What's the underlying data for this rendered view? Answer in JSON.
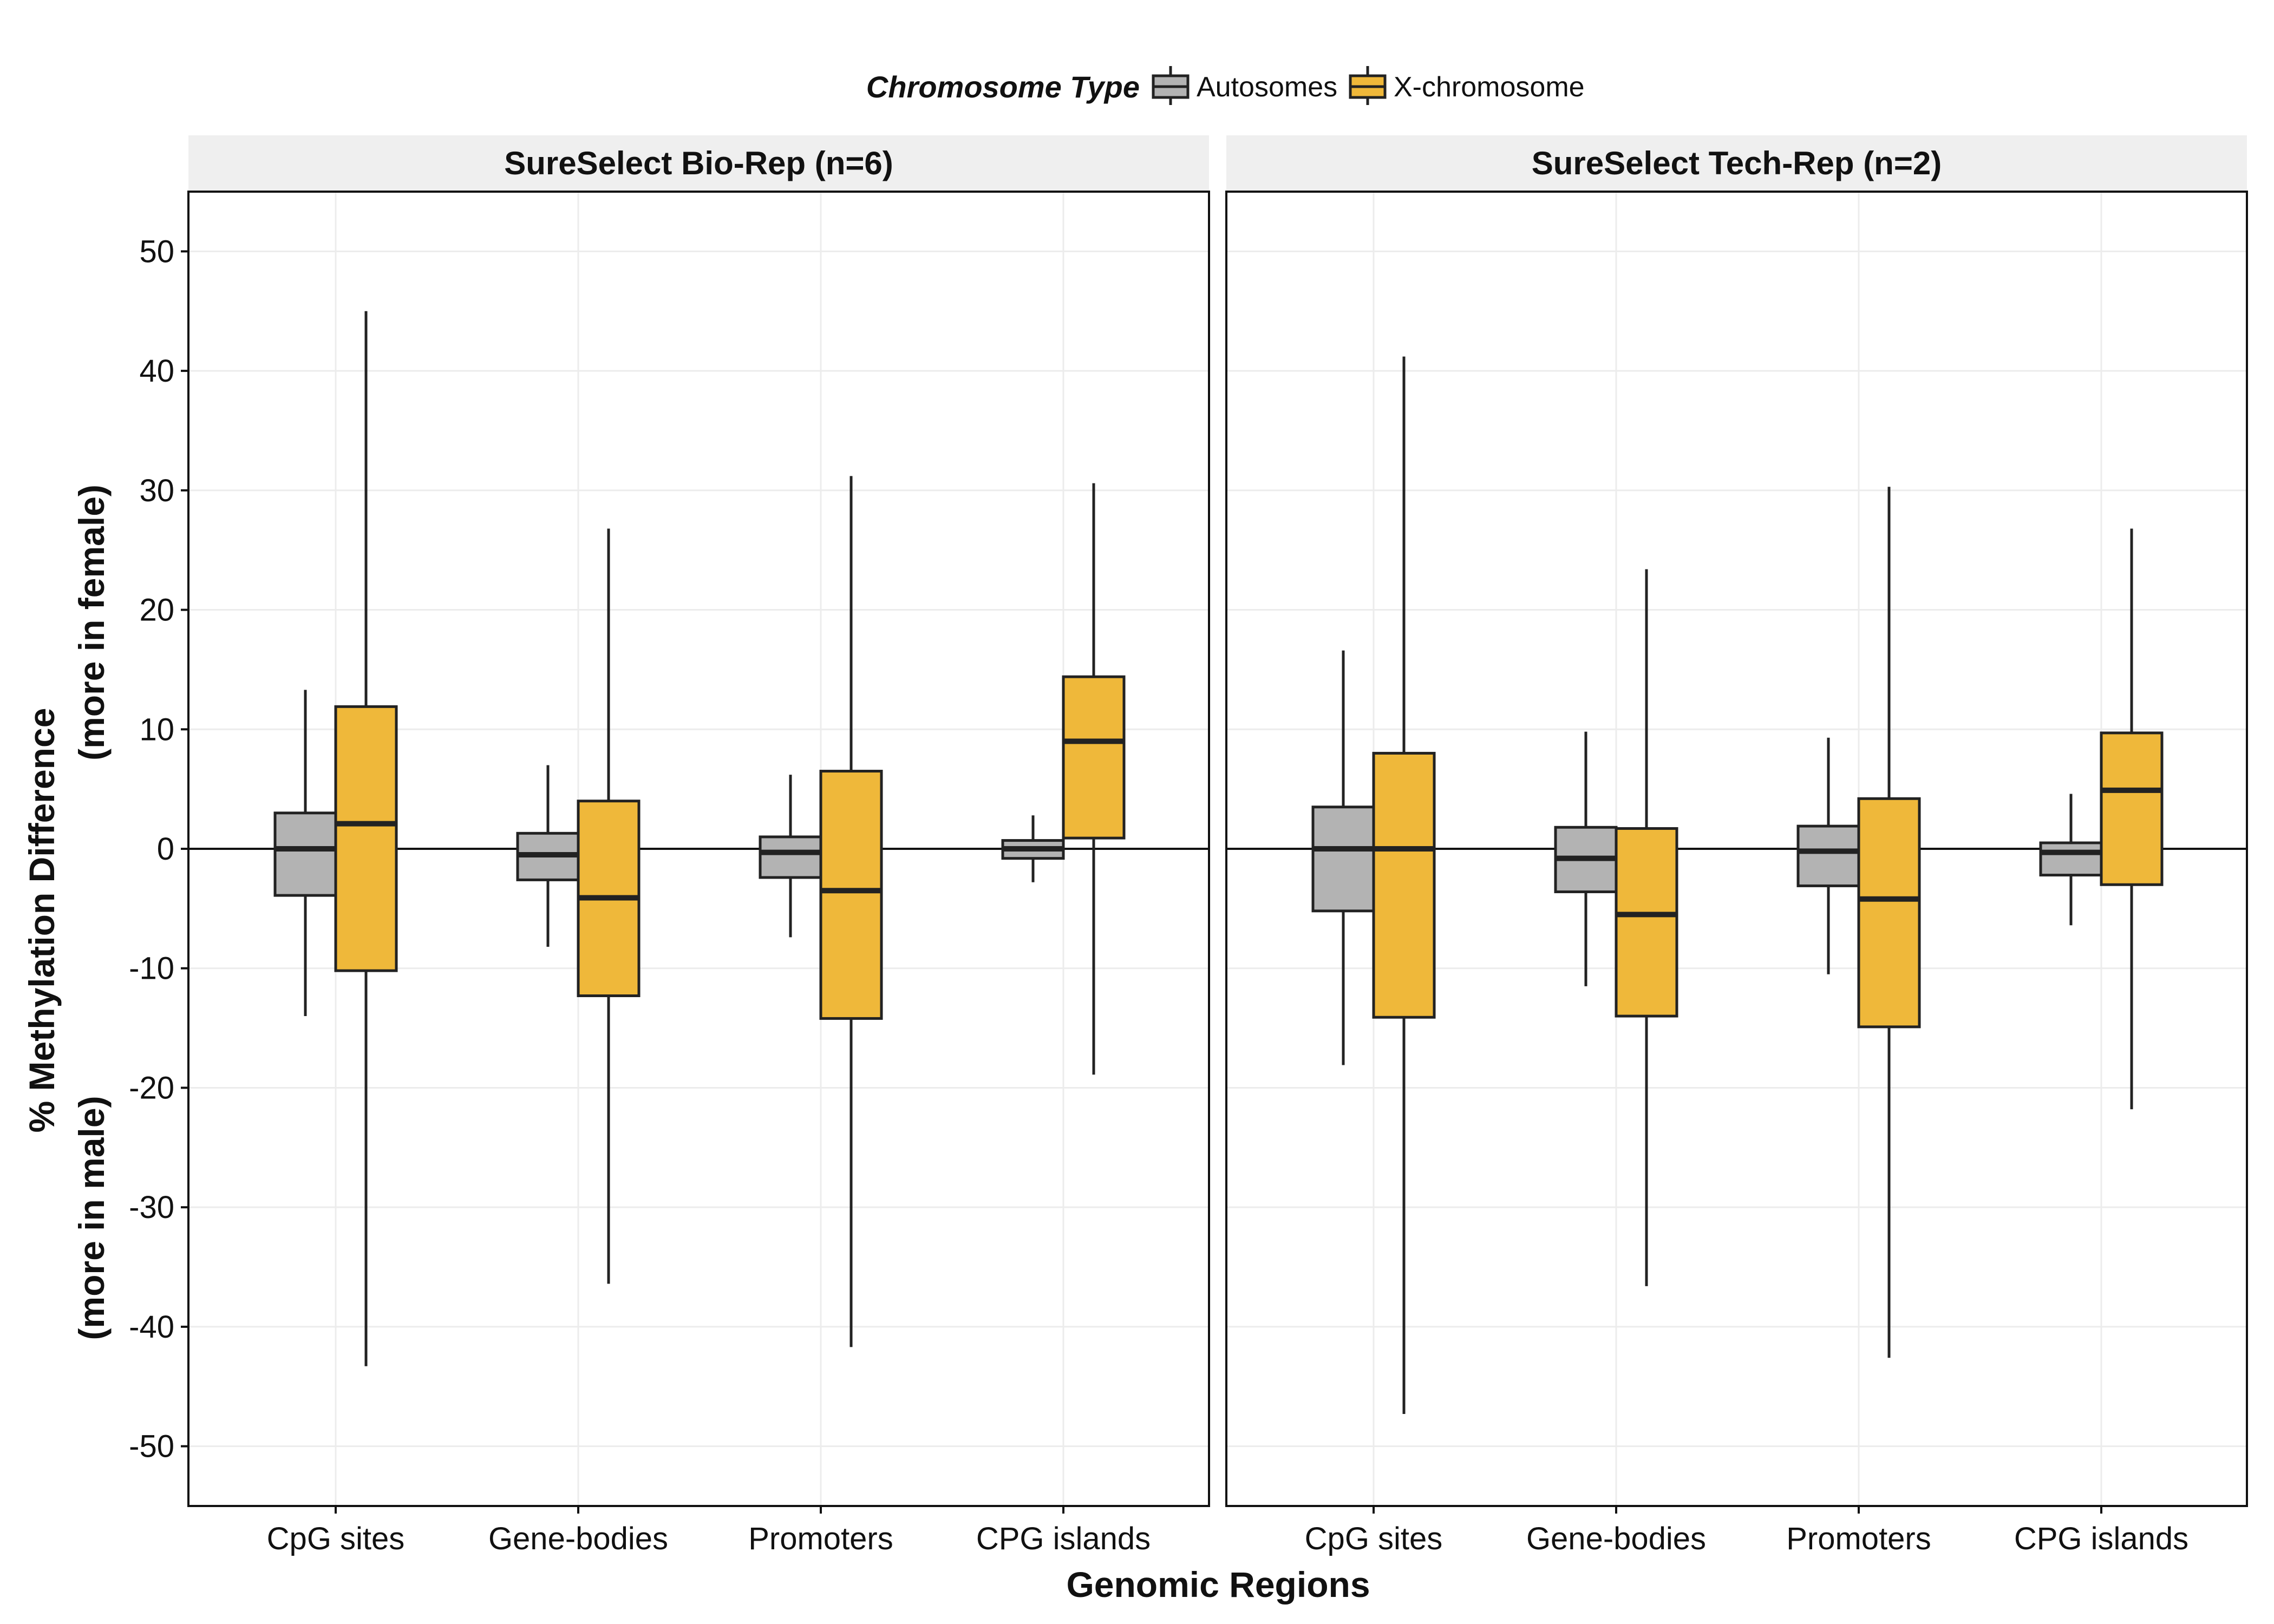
{
  "chart_data": {
    "type": "boxplot",
    "xlabel": "Genomic Regions",
    "ylabel_line1": "% Methylation Difference",
    "ylabel_line2": "(more in female)",
    "ylabel_line3": "(more in male)",
    "ylim": [
      -55,
      55
    ],
    "yticks": [
      50,
      40,
      30,
      20,
      10,
      0,
      -10,
      -20,
      -30,
      -40,
      -50
    ],
    "grid": true,
    "reference_line": 0,
    "legend": {
      "title": "Chromosome Type",
      "position": "top",
      "items": [
        {
          "label": "Autosomes",
          "color": "#b3b3b3"
        },
        {
          "label": "X-chromosome",
          "color": "#efb83a"
        }
      ]
    },
    "categories": [
      "CpG sites",
      "Gene-bodies",
      "Promoters",
      "CPG islands"
    ],
    "panels": [
      {
        "title": "SureSelect Bio-Rep (n=6)",
        "series": [
          {
            "name": "Autosomes",
            "boxes": [
              {
                "min": -14,
                "q1": -3.9,
                "median": 0,
                "q3": 3,
                "max": 13.3
              },
              {
                "min": -8.2,
                "q1": -2.6,
                "median": -0.5,
                "q3": 1.3,
                "max": 7
              },
              {
                "min": -7.4,
                "q1": -2.4,
                "median": -0.3,
                "q3": 1,
                "max": 6.2
              },
              {
                "min": -2.8,
                "q1": -0.8,
                "median": 0,
                "q3": 0.7,
                "max": 2.8
              }
            ]
          },
          {
            "name": "X-chromosome",
            "boxes": [
              {
                "min": -43.3,
                "q1": -10.2,
                "median": 2.1,
                "q3": 11.9,
                "max": 45
              },
              {
                "min": -36.4,
                "q1": -12.3,
                "median": -4.1,
                "q3": 4,
                "max": 26.8
              },
              {
                "min": -41.7,
                "q1": -14.2,
                "median": -3.5,
                "q3": 6.5,
                "max": 31.2
              },
              {
                "min": -18.9,
                "q1": 0.9,
                "median": 9,
                "q3": 14.4,
                "max": 30.6
              }
            ]
          }
        ]
      },
      {
        "title": "SureSelect Tech-Rep (n=2)",
        "series": [
          {
            "name": "Autosomes",
            "boxes": [
              {
                "min": -18.1,
                "q1": -5.2,
                "median": 0,
                "q3": 3.5,
                "max": 16.6
              },
              {
                "min": -11.5,
                "q1": -3.6,
                "median": -0.8,
                "q3": 1.8,
                "max": 9.8
              },
              {
                "min": -10.5,
                "q1": -3.1,
                "median": -0.2,
                "q3": 1.9,
                "max": 9.3
              },
              {
                "min": -6.4,
                "q1": -2.2,
                "median": -0.3,
                "q3": 0.5,
                "max": 4.6
              }
            ]
          },
          {
            "name": "X-chromosome",
            "boxes": [
              {
                "min": -47.3,
                "q1": -14.1,
                "median": 0,
                "q3": 8,
                "max": 41.2
              },
              {
                "min": -36.6,
                "q1": -14,
                "median": -5.5,
                "q3": 1.7,
                "max": 23.4
              },
              {
                "min": -42.6,
                "q1": -14.9,
                "median": -4.2,
                "q3": 4.2,
                "max": 30.3
              },
              {
                "min": -21.8,
                "q1": -3,
                "median": 4.9,
                "q3": 9.7,
                "max": 26.8
              }
            ]
          }
        ]
      }
    ]
  }
}
